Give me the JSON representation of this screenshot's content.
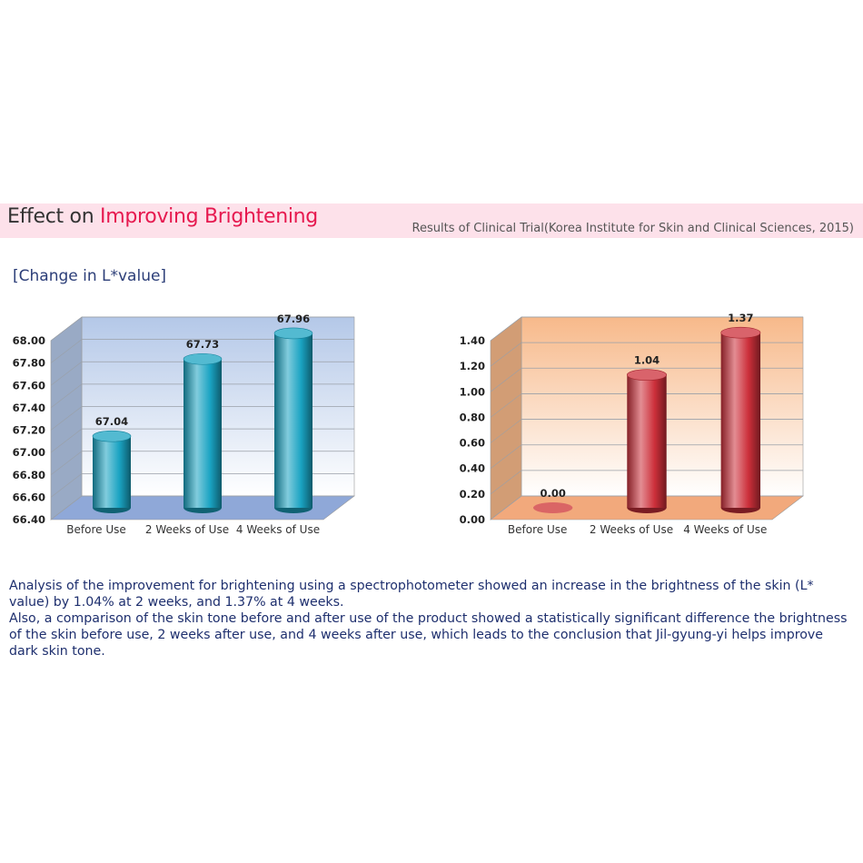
{
  "header": {
    "title_prefix": "Effect on ",
    "title_highlight": "Improving Brightening",
    "source": "Results of Clinical Trial(Korea Institute for Skin and Clinical Sciences, 2015)",
    "title_color": "#e6194f",
    "band_color": "#fde1ea"
  },
  "subtitle": "[Change in L*value]",
  "description": {
    "p1": "Analysis of the improvement for brightening using a spectrophotometer showed an increase in the brightness of the skin (L* value) by 1.04% at 2 weeks, and 1.37% at 4 weeks.",
    "p2": "Also, a comparison of the skin tone before and after use of the product showed a statistically significant difference the brightness of the skin before use, 2 weeks after use, and 4 weeks after use, which leads to the conclusion that Jil-gyung-yi helps improve dark skin tone."
  },
  "chart_data": [
    {
      "type": "bar",
      "title": "L* value",
      "categories": [
        "Before Use",
        "2 Weeks of Use",
        "4 Weeks of Use"
      ],
      "values": [
        67.04,
        67.73,
        67.96
      ],
      "value_labels": [
        "67.04",
        "67.73",
        "67.96"
      ],
      "ylim": [
        66.4,
        68.0
      ],
      "yticks": [
        "66.40",
        "66.60",
        "66.80",
        "67.00",
        "67.20",
        "67.40",
        "67.60",
        "67.80",
        "68.00"
      ],
      "xlabel": "",
      "ylabel": "",
      "grid": true,
      "bar_color": "#1aa3c2",
      "bg_top": "#b4c8e8",
      "bg_bottom": "#ffffff",
      "floor_color": "#8fa8d8"
    },
    {
      "type": "bar",
      "title": "Change in L* value",
      "categories": [
        "Before Use",
        "2 Weeks of Use",
        "4 Weeks of Use"
      ],
      "values": [
        0.0,
        1.04,
        1.37
      ],
      "value_labels": [
        "0.00",
        "1.04",
        "1.37"
      ],
      "ylim": [
        0.0,
        1.4
      ],
      "yticks": [
        "0.00",
        "0.20",
        "0.40",
        "0.60",
        "0.80",
        "1.00",
        "1.20",
        "1.40"
      ],
      "xlabel": "",
      "ylabel": "",
      "grid": true,
      "bar_color": "#cc2f3a",
      "bg_top": "#f7b98a",
      "bg_bottom": "#ffffff",
      "floor_color": "#f2a97c"
    }
  ]
}
